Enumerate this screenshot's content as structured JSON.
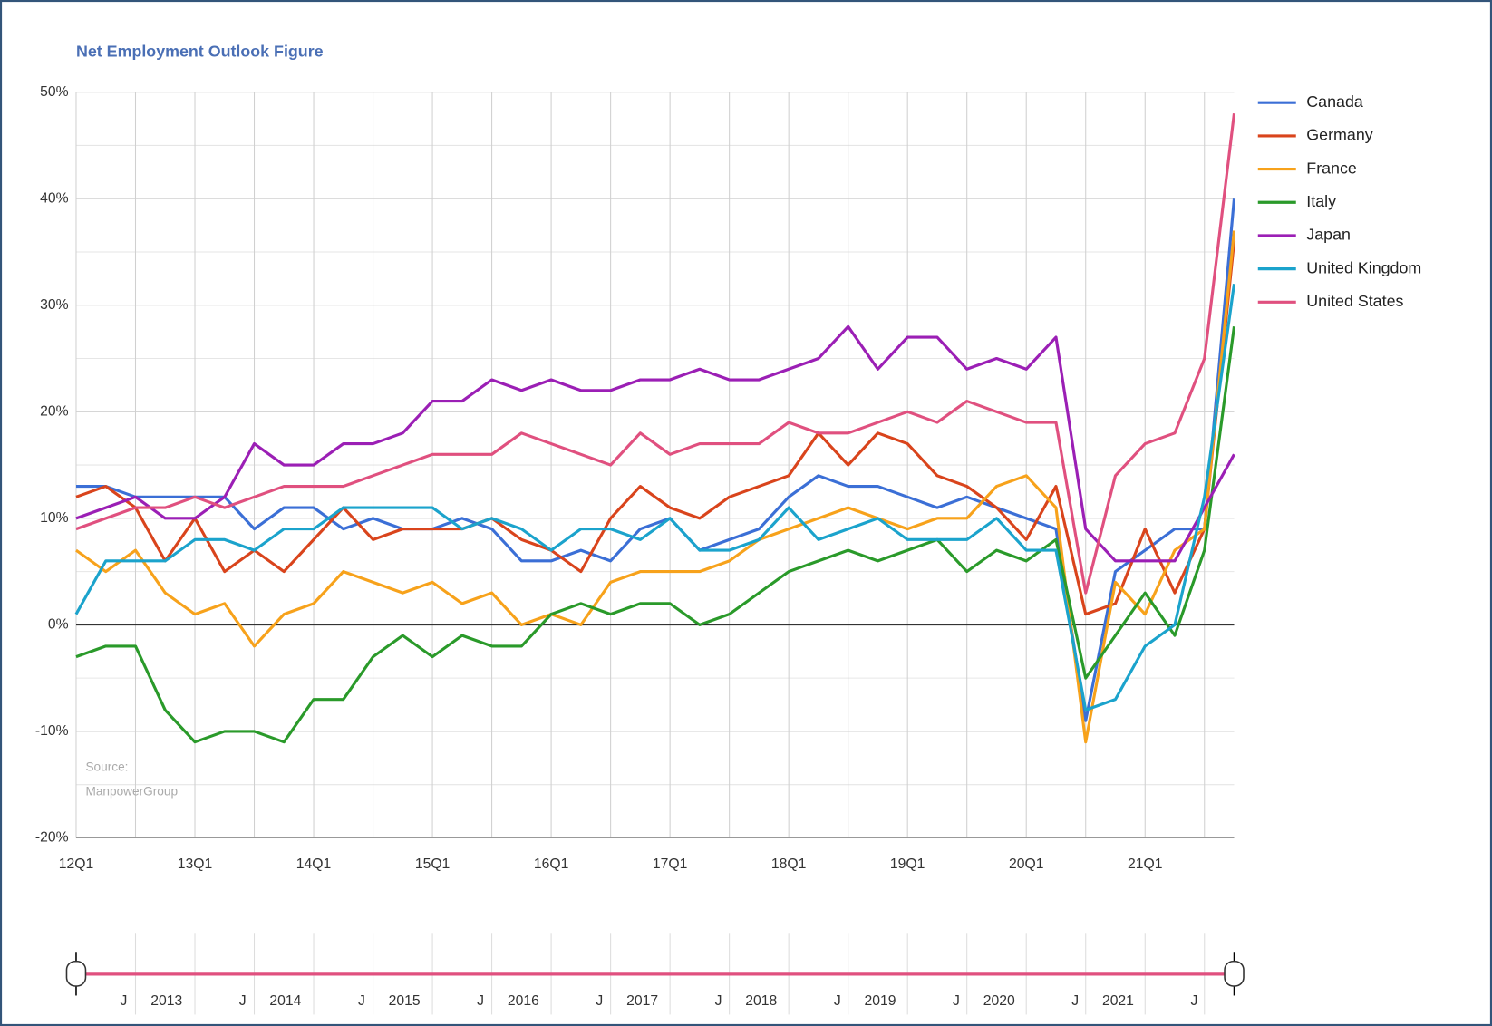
{
  "chart_data": {
    "type": "line",
    "title": "Net Employment Outlook Figure",
    "categories": [
      "12Q1",
      null,
      null,
      null,
      "13Q1",
      null,
      null,
      null,
      "14Q1",
      null,
      null,
      null,
      "15Q1",
      null,
      null,
      null,
      "16Q1",
      null,
      null,
      null,
      "17Q1",
      null,
      null,
      null,
      "18Q1",
      null,
      null,
      null,
      "19Q1",
      null,
      null,
      null,
      "20Q1",
      null,
      null,
      null,
      "21Q1",
      null,
      null,
      null
    ],
    "series": [
      {
        "name": "Canada",
        "color": "#3b6fd6",
        "values": [
          13,
          13,
          12,
          12,
          12,
          12,
          9,
          11,
          11,
          9,
          10,
          9,
          9,
          10,
          9,
          6,
          6,
          7,
          6,
          9,
          10,
          7,
          8,
          9,
          12,
          14,
          13,
          13,
          12,
          11,
          12,
          11,
          10,
          9,
          -9,
          5,
          7,
          9,
          9,
          40
        ]
      },
      {
        "name": "Germany",
        "color": "#d9441c",
        "values": [
          12,
          13,
          11,
          6,
          10,
          5,
          7,
          5,
          8,
          11,
          8,
          9,
          9,
          9,
          10,
          8,
          7,
          5,
          10,
          13,
          11,
          10,
          12,
          13,
          14,
          18,
          15,
          18,
          17,
          14,
          13,
          11,
          8,
          13,
          1,
          2,
          9,
          3,
          9,
          36
        ]
      },
      {
        "name": "France",
        "color": "#f7a21b",
        "values": [
          7,
          5,
          7,
          3,
          1,
          2,
          -2,
          1,
          2,
          5,
          4,
          3,
          4,
          2,
          3,
          0,
          1,
          0,
          4,
          5,
          5,
          5,
          6,
          8,
          9,
          10,
          11,
          10,
          9,
          10,
          10,
          13,
          14,
          11,
          -11,
          4,
          1,
          7,
          9,
          37
        ]
      },
      {
        "name": "Italy",
        "color": "#2a9a2a",
        "values": [
          -3,
          -2,
          -2,
          -8,
          -11,
          -10,
          -10,
          -11,
          -7,
          -7,
          -3,
          -1,
          -3,
          -1,
          -2,
          -2,
          1,
          2,
          1,
          2,
          2,
          0,
          1,
          3,
          5,
          6,
          7,
          6,
          7,
          8,
          5,
          7,
          6,
          8,
          -5,
          -1,
          3,
          -1,
          7,
          28
        ]
      },
      {
        "name": "Japan",
        "color": "#9b1fb5",
        "values": [
          10,
          11,
          12,
          10,
          10,
          12,
          17,
          15,
          15,
          17,
          17,
          18,
          21,
          21,
          23,
          22,
          23,
          22,
          22,
          23,
          23,
          24,
          23,
          23,
          24,
          25,
          28,
          24,
          27,
          27,
          24,
          25,
          24,
          27,
          9,
          6,
          6,
          6,
          11,
          16
        ]
      },
      {
        "name": "United Kingdom",
        "color": "#1ba3cc",
        "values": [
          1,
          6,
          6,
          6,
          8,
          8,
          7,
          9,
          9,
          11,
          11,
          11,
          11,
          9,
          10,
          9,
          7,
          9,
          9,
          8,
          10,
          7,
          7,
          8,
          11,
          8,
          9,
          10,
          8,
          8,
          8,
          10,
          7,
          7,
          -8,
          -7,
          -2,
          0,
          12,
          32
        ]
      },
      {
        "name": "United States",
        "color": "#e0507f",
        "values": [
          9,
          10,
          11,
          11,
          12,
          11,
          12,
          13,
          13,
          13,
          14,
          15,
          16,
          16,
          16,
          18,
          17,
          16,
          15,
          18,
          16,
          17,
          17,
          17,
          19,
          18,
          18,
          19,
          20,
          19,
          21,
          20,
          19,
          19,
          3,
          14,
          17,
          18,
          25,
          48
        ]
      }
    ],
    "ylim": [
      -20,
      50
    ],
    "yticks": [
      {
        "value": -20,
        "label": "-20%"
      },
      {
        "value": -10,
        "label": "-10%"
      },
      {
        "value": 0,
        "label": "0%"
      },
      {
        "value": 10,
        "label": "10%"
      },
      {
        "value": 20,
        "label": "20%"
      },
      {
        "value": 30,
        "label": "30%"
      },
      {
        "value": 40,
        "label": "40%"
      },
      {
        "value": 50,
        "label": "50%"
      }
    ],
    "y_minor_ticks": [
      -15,
      -5,
      5,
      15,
      25,
      35,
      45
    ],
    "grid": true,
    "legend": "right",
    "source": [
      "Source:",
      "ManpowerGroup"
    ],
    "navigator_labels": [
      [
        "J",
        "2013"
      ],
      [
        "J",
        "2014"
      ],
      [
        "J",
        "2015"
      ],
      [
        "J",
        "2016"
      ],
      [
        "J",
        "2017"
      ],
      [
        "J",
        "2018"
      ],
      [
        "J",
        "2019"
      ],
      [
        "J",
        "2020"
      ],
      [
        "J",
        "2021"
      ],
      [
        "J"
      ]
    ]
  }
}
